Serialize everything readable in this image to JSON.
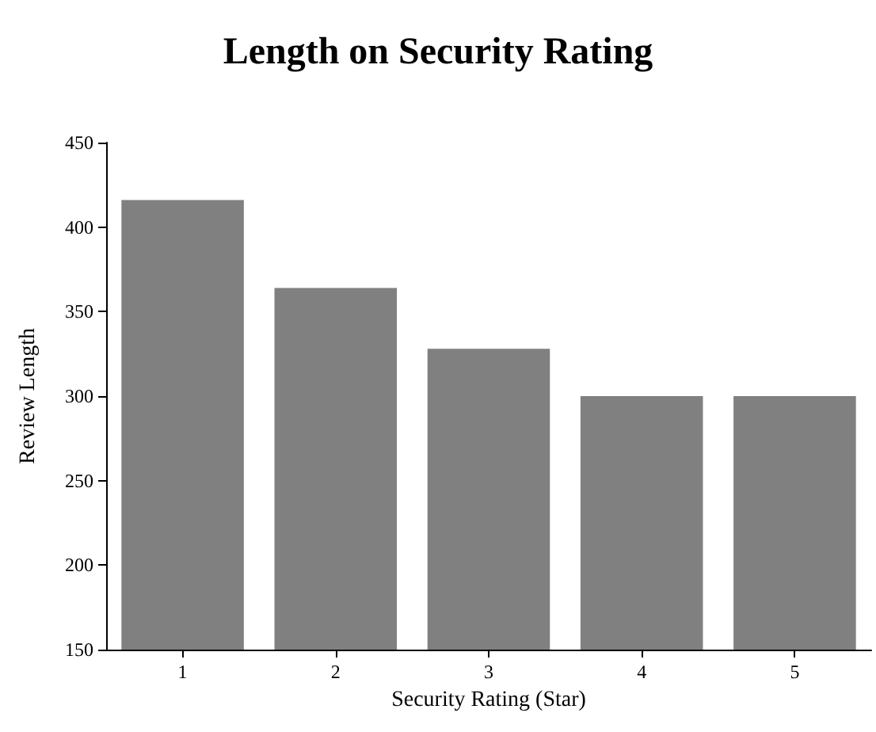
{
  "chart_data": {
    "type": "bar",
    "title": "Length on Security Rating",
    "xlabel": "Security Rating (Star)",
    "ylabel": "Review Length",
    "categories": [
      "1",
      "2",
      "3",
      "4",
      "5"
    ],
    "values": [
      416,
      364,
      328,
      300,
      300
    ],
    "color": "#808080",
    "ylim": [
      150,
      450
    ],
    "yticks": [
      150,
      200,
      250,
      300,
      350,
      400,
      450
    ],
    "grid": false
  }
}
